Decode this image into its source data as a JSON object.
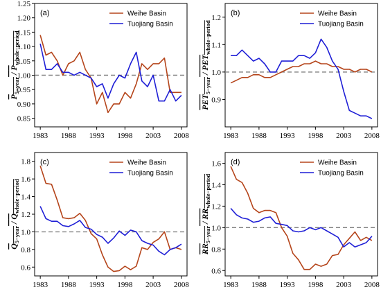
{
  "colors": {
    "weihe": "#b5451b",
    "tuojiang": "#1f1fd6",
    "reference": "#808080"
  },
  "chart_data": [
    {
      "type": "line",
      "panel_label": "(a)",
      "ylabel_main": "P",
      "ylabel_sub": "5−year",
      "ylabel_main2": "P",
      "ylabel_sub2": "whole−period",
      "x": [
        1983,
        1984,
        1985,
        1986,
        1987,
        1988,
        1989,
        1990,
        1991,
        1992,
        1993,
        1994,
        1995,
        1996,
        1997,
        1998,
        1999,
        2000,
        2001,
        2002,
        2003,
        2004,
        2005,
        2006,
        2007,
        2008
      ],
      "xticks": [
        1983,
        1988,
        1993,
        1998,
        2003,
        2008
      ],
      "ylim": [
        0.82,
        1.25
      ],
      "yticks": [
        0.85,
        0.9,
        0.95,
        1.0,
        1.05,
        1.1,
        1.15,
        1.2,
        1.25
      ],
      "yfmt": 2,
      "reference_line": 1.0,
      "legend_position": "top-right",
      "series": [
        {
          "name": "Weihe Basin",
          "values": [
            1.14,
            1.07,
            1.08,
            1.05,
            1.0,
            1.04,
            1.05,
            1.08,
            1.02,
            0.99,
            0.9,
            0.94,
            0.87,
            0.9,
            0.9,
            0.94,
            0.92,
            0.97,
            1.04,
            1.02,
            1.04,
            1.04,
            1.06,
            0.94,
            0.94,
            0.94
          ]
        },
        {
          "name": "Tuojiang Basin",
          "values": [
            1.11,
            1.02,
            1.02,
            1.04,
            1.01,
            1.01,
            1.0,
            1.01,
            1.0,
            0.99,
            0.96,
            0.97,
            0.92,
            0.97,
            1.0,
            0.99,
            1.04,
            1.08,
            0.98,
            0.96,
            1.0,
            0.91,
            0.91,
            0.95,
            0.91,
            0.93
          ]
        }
      ]
    },
    {
      "type": "line",
      "panel_label": "(b)",
      "ylabel_main": "PET",
      "ylabel_sub": "5−year",
      "ylabel_main2": "PET",
      "ylabel_sub2": "whole−period",
      "x": [
        1983,
        1984,
        1985,
        1986,
        1987,
        1988,
        1989,
        1990,
        1991,
        1992,
        1993,
        1994,
        1995,
        1996,
        1997,
        1998,
        1999,
        2000,
        2001,
        2002,
        2003,
        2004,
        2005,
        2006,
        2007,
        2008
      ],
      "xticks": [
        1983,
        1988,
        1993,
        1998,
        2003,
        2008
      ],
      "ylim": [
        0.8,
        1.25
      ],
      "yticks": [
        0.9,
        1.0,
        1.1,
        1.2
      ],
      "yfmt": 1,
      "reference_line": 1.0,
      "legend_position": "top-right",
      "series": [
        {
          "name": "Weihe Basin",
          "values": [
            0.96,
            0.97,
            0.98,
            0.98,
            0.99,
            0.99,
            0.98,
            0.98,
            0.99,
            1.0,
            1.01,
            1.02,
            1.02,
            1.03,
            1.03,
            1.04,
            1.03,
            1.03,
            1.02,
            1.02,
            1.01,
            1.01,
            1.0,
            1.01,
            1.01,
            1.0
          ]
        },
        {
          "name": "Tuojiang Basin",
          "values": [
            1.06,
            1.06,
            1.08,
            1.06,
            1.04,
            1.05,
            1.03,
            1.0,
            1.0,
            1.04,
            1.04,
            1.04,
            1.06,
            1.06,
            1.05,
            1.07,
            1.12,
            1.09,
            1.04,
            1.01,
            0.93,
            0.86,
            0.85,
            0.84,
            0.84,
            0.83
          ]
        }
      ]
    },
    {
      "type": "line",
      "panel_label": "(c)",
      "ylabel_main": "Q",
      "ylabel_sub": "5−year",
      "ylabel_main2": "Q",
      "ylabel_sub2": "whole−period",
      "x": [
        1983,
        1984,
        1985,
        1986,
        1987,
        1988,
        1989,
        1990,
        1991,
        1992,
        1993,
        1994,
        1995,
        1996,
        1997,
        1998,
        1999,
        2000,
        2001,
        2002,
        2003,
        2004,
        2005,
        2006,
        2007,
        2008
      ],
      "xticks": [
        1983,
        1988,
        1993,
        1998,
        2003,
        2008
      ],
      "ylim": [
        0.5,
        1.9
      ],
      "yticks": [
        0.6,
        0.8,
        1.0,
        1.2,
        1.4,
        1.6,
        1.8
      ],
      "yfmt": 1,
      "reference_line": 1.0,
      "legend_position": "top-right",
      "series": [
        {
          "name": "Weihe Basin",
          "values": [
            1.75,
            1.55,
            1.54,
            1.36,
            1.16,
            1.15,
            1.16,
            1.21,
            1.13,
            0.98,
            0.92,
            0.74,
            0.6,
            0.55,
            0.56,
            0.61,
            0.57,
            0.61,
            0.82,
            0.8,
            0.88,
            0.92,
            1.0,
            0.8,
            0.82,
            0.8
          ]
        },
        {
          "name": "Tuojiang Basin",
          "values": [
            1.29,
            1.15,
            1.12,
            1.12,
            1.07,
            1.06,
            1.09,
            1.13,
            1.05,
            1.03,
            0.97,
            0.94,
            0.87,
            0.93,
            1.01,
            0.96,
            1.02,
            1.0,
            0.9,
            0.87,
            0.85,
            0.78,
            0.74,
            0.8,
            0.82,
            0.86
          ]
        }
      ]
    },
    {
      "type": "line",
      "panel_label": "(d)",
      "ylabel_main": "RR",
      "ylabel_sub": "5−year",
      "ylabel_main2": "RR",
      "ylabel_sub2": "whole−period",
      "x": [
        1983,
        1984,
        1985,
        1986,
        1987,
        1988,
        1989,
        1990,
        1991,
        1992,
        1993,
        1994,
        1995,
        1996,
        1997,
        1998,
        1999,
        2000,
        2001,
        2002,
        2003,
        2004,
        2005,
        2006,
        2007,
        2008
      ],
      "xticks": [
        1983,
        1988,
        1993,
        1998,
        2003,
        2008
      ],
      "ylim": [
        0.55,
        1.7
      ],
      "yticks": [
        0.6,
        0.8,
        1.0,
        1.2,
        1.4,
        1.6
      ],
      "yfmt": 1,
      "reference_line": 1.0,
      "legend_position": "top-right",
      "series": [
        {
          "name": "Weihe Basin",
          "values": [
            1.57,
            1.45,
            1.42,
            1.32,
            1.18,
            1.14,
            1.16,
            1.16,
            1.14,
            1.0,
            0.92,
            0.76,
            0.7,
            0.61,
            0.61,
            0.66,
            0.64,
            0.66,
            0.74,
            0.75,
            0.84,
            0.9,
            0.96,
            0.88,
            0.91,
            0.88
          ]
        },
        {
          "name": "Tuojiang Basin",
          "values": [
            1.18,
            1.12,
            1.09,
            1.08,
            1.05,
            1.06,
            1.09,
            1.1,
            1.04,
            1.03,
            1.02,
            0.97,
            0.96,
            0.97,
            1.0,
            0.98,
            1.0,
            0.97,
            0.94,
            0.91,
            0.82,
            0.86,
            0.82,
            0.84,
            0.86,
            0.92
          ]
        }
      ]
    }
  ]
}
